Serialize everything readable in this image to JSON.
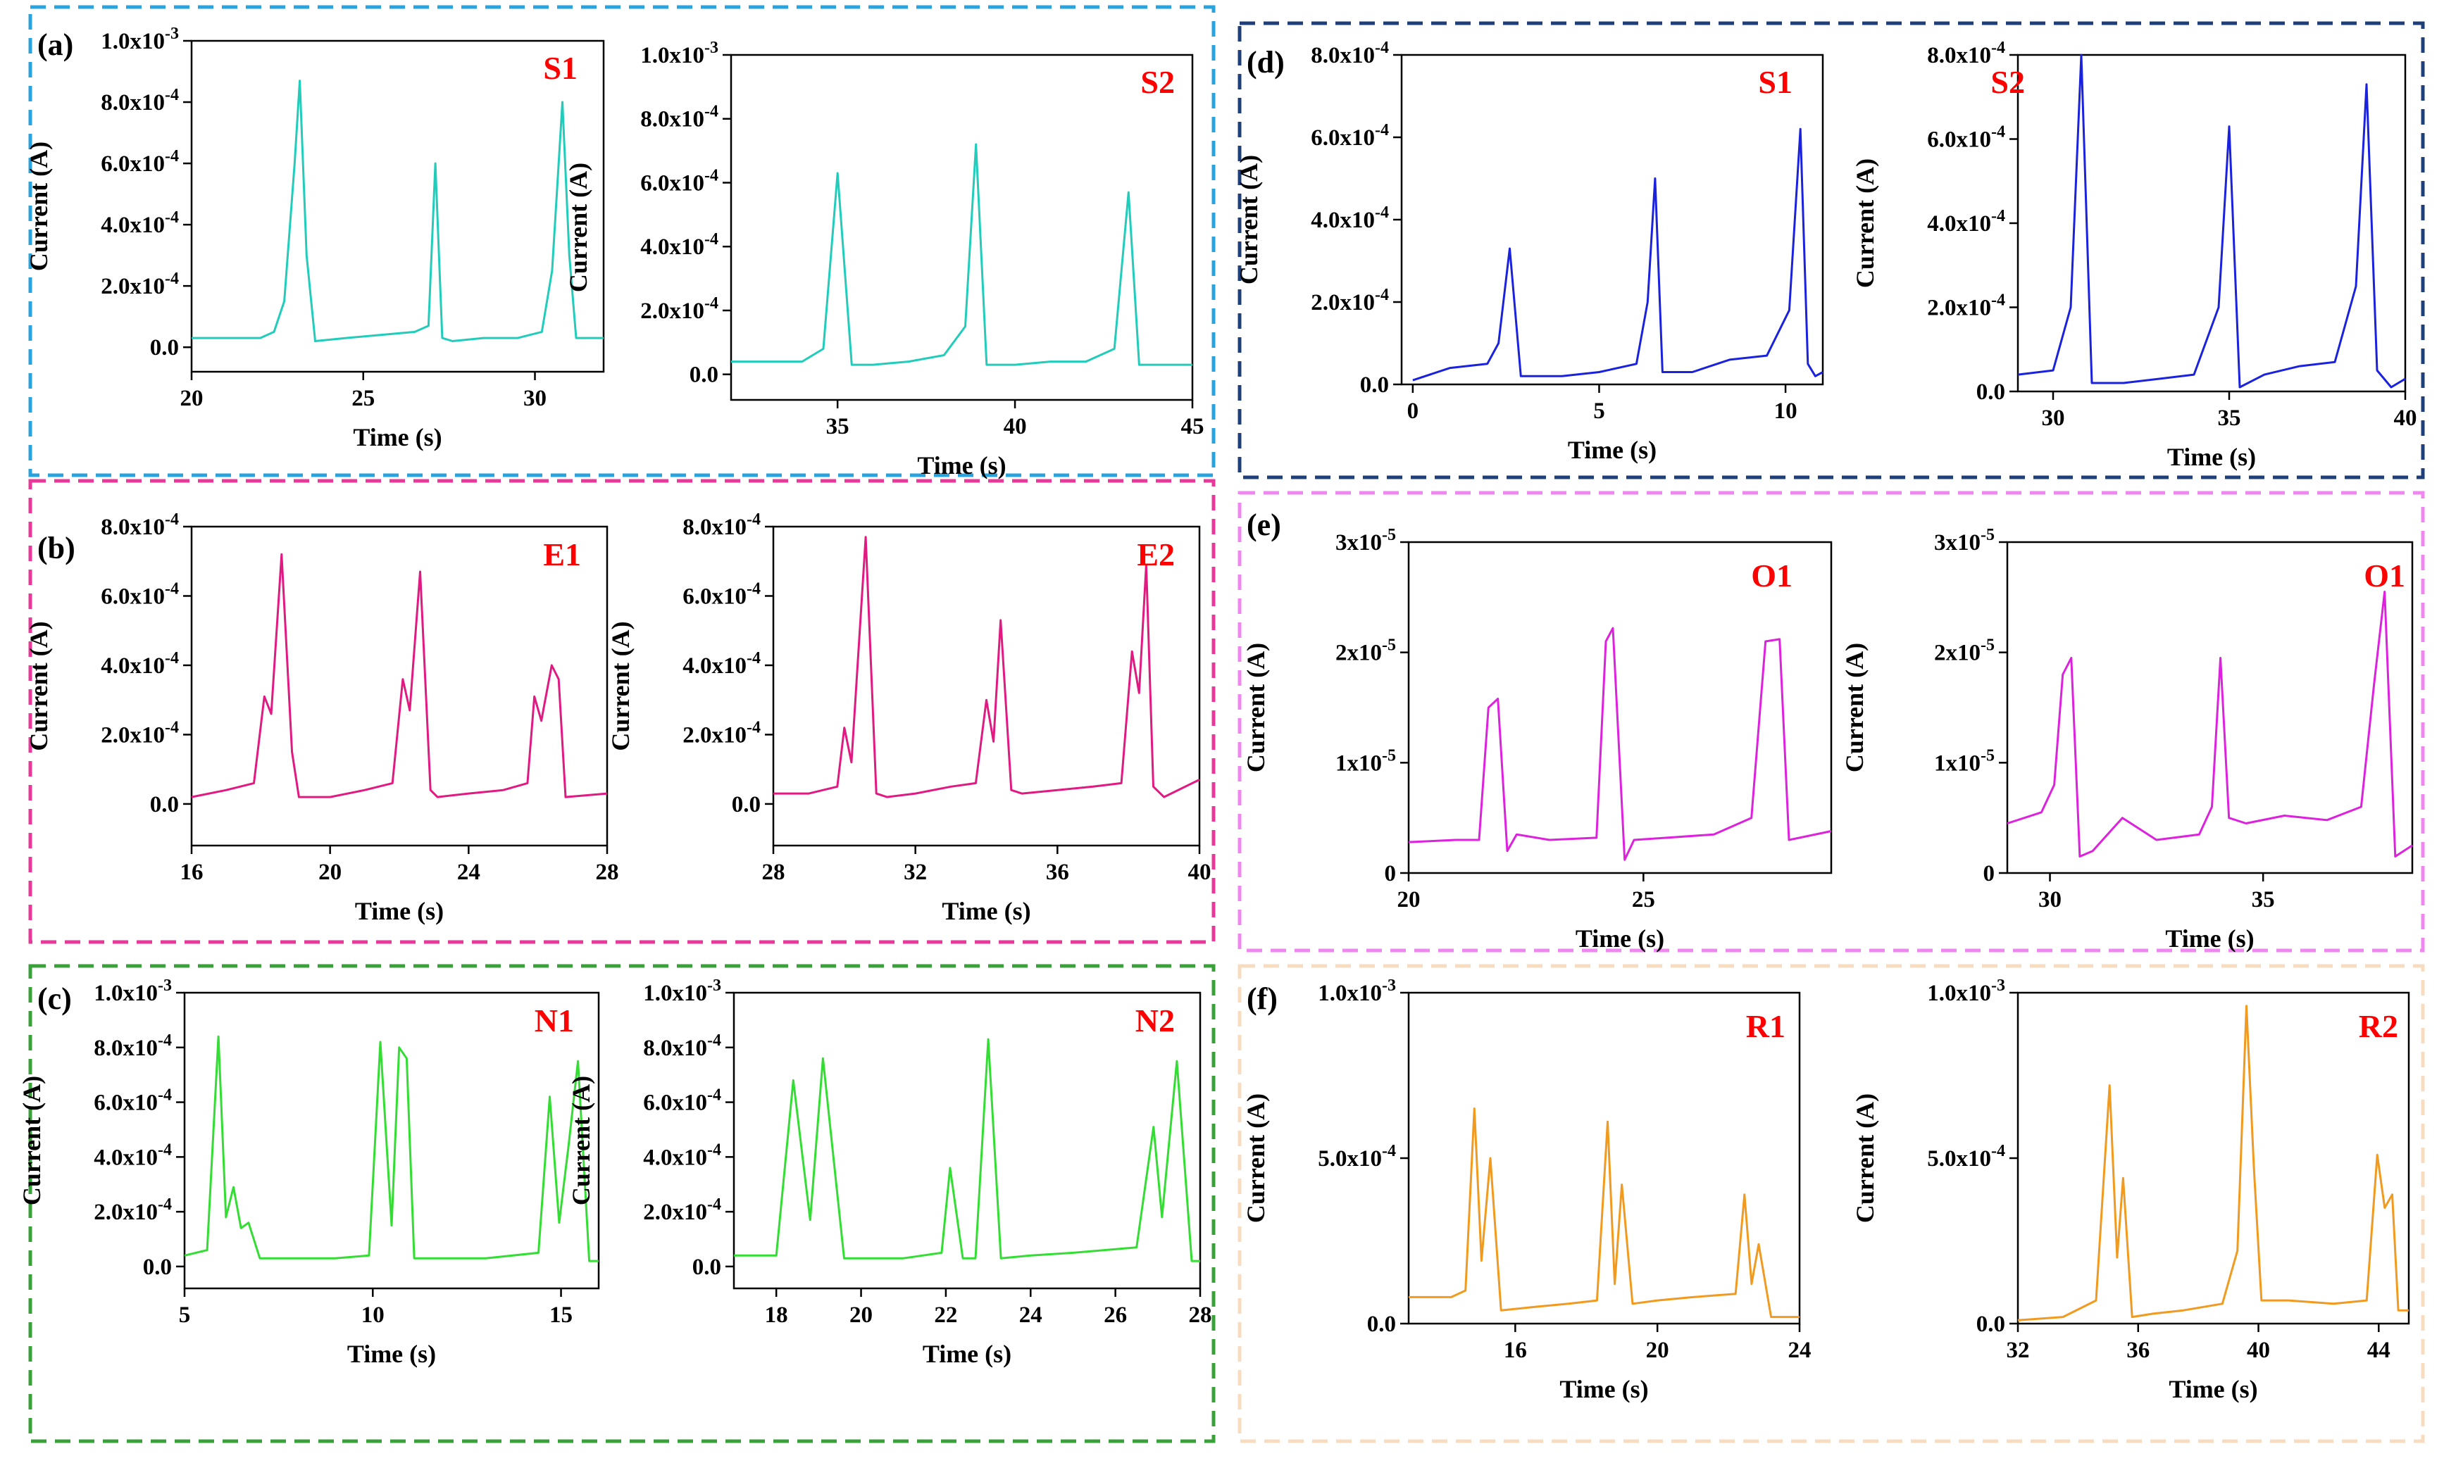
{
  "figure": {
    "frames": [
      {
        "name": "frame-a",
        "color": "#29a3dd"
      },
      {
        "name": "frame-b",
        "color": "#e8389a"
      },
      {
        "name": "frame-c",
        "color": "#3aa13a"
      },
      {
        "name": "frame-d",
        "color": "#1f3f7a"
      },
      {
        "name": "frame-e",
        "color": "#ee88ee"
      },
      {
        "name": "frame-f",
        "color": "#f8dcc0"
      }
    ],
    "panel_labels": [
      "(a)",
      "(b)",
      "(c)",
      "(d)",
      "(e)",
      "(f)"
    ]
  },
  "chart_data": [
    {
      "type": "line",
      "panel": "(a)",
      "label": "S1",
      "color": "#22ccbb",
      "xlabel": "Time (s)",
      "ylabel": "Current (A)",
      "xlim": [
        20,
        32
      ],
      "ylim": [
        -8e-05,
        0.001
      ],
      "xticks": [
        20,
        25,
        30
      ],
      "xticklabels": [
        "20",
        "25",
        "30"
      ],
      "yticks": [
        0,
        0.0002,
        0.0004,
        0.0006,
        0.0008,
        0.001
      ],
      "yticklabels": [
        "0.0",
        "2.0x10-4",
        "4.0x10-4",
        "6.0x10-4",
        "8.0x10-4",
        "1.0x10-3"
      ],
      "x": [
        20,
        21,
        22,
        22.4,
        22.7,
        23.0,
        23.15,
        23.35,
        23.6,
        24.5,
        25.5,
        26.5,
        26.9,
        27.1,
        27.3,
        27.6,
        28.5,
        29.5,
        30.2,
        30.5,
        30.8,
        31.0,
        31.2,
        32
      ],
      "y": [
        3e-05,
        3e-05,
        3e-05,
        5e-05,
        0.00015,
        0.0006,
        0.00087,
        0.0003,
        2e-05,
        3e-05,
        4e-05,
        5e-05,
        7e-05,
        0.0006,
        3e-05,
        2e-05,
        3e-05,
        3e-05,
        5e-05,
        0.00025,
        0.0008,
        0.0003,
        3e-05,
        3e-05
      ]
    },
    {
      "type": "line",
      "panel": "(a)",
      "label": "S2",
      "color": "#22ccbb",
      "xlabel": "Time (s)",
      "ylabel": "Current (A)",
      "xlim": [
        32,
        45
      ],
      "ylim": [
        -8e-05,
        0.001
      ],
      "xticks": [
        35,
        40,
        45
      ],
      "xticklabels": [
        "35",
        "40",
        "45"
      ],
      "yticks": [
        0,
        0.0002,
        0.0004,
        0.0006,
        0.0008,
        0.001
      ],
      "yticklabels": [
        "0.0",
        "2.0x10-4",
        "4.0x10-4",
        "6.0x10-4",
        "8.0x10-4",
        "1.0x10-3"
      ],
      "x": [
        32,
        33,
        34,
        34.6,
        35.0,
        35.4,
        36,
        37,
        38,
        38.6,
        38.9,
        39.2,
        40,
        41,
        42,
        42.8,
        43.2,
        43.5,
        44,
        45
      ],
      "y": [
        4e-05,
        4e-05,
        4e-05,
        8e-05,
        0.00063,
        3e-05,
        3e-05,
        4e-05,
        6e-05,
        0.00015,
        0.00072,
        3e-05,
        3e-05,
        4e-05,
        4e-05,
        8e-05,
        0.00057,
        3e-05,
        3e-05,
        3e-05
      ]
    },
    {
      "type": "line",
      "panel": "(b)",
      "label": "E1",
      "color": "#e01a80",
      "xlabel": "Time (s)",
      "ylabel": "Current (A)",
      "xlim": [
        16,
        28
      ],
      "ylim": [
        -0.00012,
        0.0008
      ],
      "xticks": [
        16,
        20,
        24,
        28
      ],
      "xticklabels": [
        "16",
        "20",
        "24",
        "28"
      ],
      "yticks": [
        0,
        0.0002,
        0.0004,
        0.0006,
        0.0008
      ],
      "yticklabels": [
        "0.0",
        "2.0x10-4",
        "4.0x10-4",
        "6.0x10-4",
        "8.0x10-4"
      ],
      "x": [
        16,
        17,
        17.8,
        18.1,
        18.3,
        18.6,
        18.9,
        19.1,
        20,
        21,
        21.8,
        22.1,
        22.3,
        22.6,
        22.9,
        23.1,
        24,
        25,
        25.7,
        25.9,
        26.1,
        26.4,
        26.6,
        26.8,
        28
      ],
      "y": [
        2e-05,
        4e-05,
        6e-05,
        0.00031,
        0.00026,
        0.00072,
        0.00015,
        2e-05,
        2e-05,
        4e-05,
        6e-05,
        0.00036,
        0.00027,
        0.00067,
        4e-05,
        2e-05,
        3e-05,
        4e-05,
        6e-05,
        0.00031,
        0.00024,
        0.0004,
        0.00036,
        2e-05,
        3e-05
      ]
    },
    {
      "type": "line",
      "panel": "(b)",
      "label": "E2",
      "color": "#e01a80",
      "xlabel": "Time (s)",
      "ylabel": "Current (A)",
      "xlim": [
        28,
        40
      ],
      "ylim": [
        -0.00012,
        0.0008
      ],
      "xticks": [
        28,
        32,
        36,
        40
      ],
      "xticklabels": [
        "28",
        "32",
        "36",
        "40"
      ],
      "yticks": [
        0,
        0.0002,
        0.0004,
        0.0006,
        0.0008
      ],
      "yticklabels": [
        "0.0",
        "2.0x10-4",
        "4.0x10-4",
        "6.0x10-4",
        "8.0x10-4"
      ],
      "x": [
        28,
        29,
        29.8,
        30.0,
        30.2,
        30.6,
        30.9,
        31.2,
        32,
        33,
        33.7,
        34.0,
        34.2,
        34.4,
        34.7,
        35,
        36,
        37,
        37.8,
        38.1,
        38.3,
        38.5,
        38.7,
        39,
        40
      ],
      "y": [
        3e-05,
        3e-05,
        5e-05,
        0.00022,
        0.00012,
        0.00077,
        3e-05,
        2e-05,
        3e-05,
        5e-05,
        6e-05,
        0.0003,
        0.00018,
        0.00053,
        4e-05,
        3e-05,
        4e-05,
        5e-05,
        6e-05,
        0.00044,
        0.00032,
        0.00069,
        5e-05,
        2e-05,
        7e-05
      ]
    },
    {
      "type": "line",
      "panel": "(c)",
      "label": "N1",
      "color": "#33dd33",
      "xlabel": "Time (s)",
      "ylabel": "Current (A)",
      "xlim": [
        5,
        16
      ],
      "ylim": [
        -8e-05,
        0.001
      ],
      "xticks": [
        5,
        10,
        15
      ],
      "xticklabels": [
        "5",
        "10",
        "15"
      ],
      "yticks": [
        0,
        0.0002,
        0.0004,
        0.0006,
        0.0008,
        0.001
      ],
      "yticklabels": [
        "0.0",
        "2.0x10-4",
        "4.0x10-4",
        "6.0x10-4",
        "8.0x10-4",
        "1.0x10-3"
      ],
      "x": [
        5,
        5.6,
        5.9,
        6.1,
        6.3,
        6.5,
        6.7,
        7,
        8,
        9,
        9.9,
        10.2,
        10.5,
        10.7,
        10.9,
        11.1,
        11.3,
        12,
        13,
        14.4,
        14.7,
        14.95,
        15.2,
        15.45,
        15.75,
        16
      ],
      "y": [
        4e-05,
        6e-05,
        0.00084,
        0.00018,
        0.00029,
        0.00014,
        0.00016,
        3e-05,
        3e-05,
        3e-05,
        4e-05,
        0.00082,
        0.00015,
        0.0008,
        0.00076,
        3e-05,
        3e-05,
        3e-05,
        3e-05,
        5e-05,
        0.00062,
        0.00016,
        0.00044,
        0.00075,
        2e-05,
        2e-05
      ]
    },
    {
      "type": "line",
      "panel": "(c)",
      "label": "N2",
      "color": "#33dd33",
      "xlabel": "Time (s)",
      "ylabel": "Current (A)",
      "xlim": [
        17,
        28
      ],
      "ylim": [
        -8e-05,
        0.001
      ],
      "xticks": [
        18,
        20,
        22,
        24,
        26,
        28
      ],
      "xticklabels": [
        "18",
        "20",
        "22",
        "24",
        "26",
        "28"
      ],
      "yticks": [
        0,
        0.0002,
        0.0004,
        0.0006,
        0.0008,
        0.001
      ],
      "yticklabels": [
        "0.0",
        "2.0x10-4",
        "4.0x10-4",
        "6.0x10-4",
        "8.0x10-4",
        "1.0x10-3"
      ],
      "x": [
        17,
        18,
        18.4,
        18.8,
        19.1,
        19.6,
        20,
        21,
        21.9,
        22.1,
        22.4,
        22.7,
        23.0,
        23.3,
        24,
        25,
        26.5,
        26.9,
        27.1,
        27.45,
        27.8,
        28
      ],
      "y": [
        4e-05,
        4e-05,
        0.00068,
        0.00017,
        0.00076,
        3e-05,
        3e-05,
        3e-05,
        5e-05,
        0.00036,
        3e-05,
        3e-05,
        0.00083,
        3e-05,
        4e-05,
        5e-05,
        7e-05,
        0.00051,
        0.00018,
        0.00075,
        2e-05,
        2e-05
      ]
    },
    {
      "type": "line",
      "panel": "(d)",
      "label": "S1",
      "color": "#1a22dd",
      "xlabel": "Time (s)",
      "ylabel": "Current (A)",
      "xlim": [
        -0.3,
        11
      ],
      "ylim": [
        0,
        0.0008
      ],
      "xticks": [
        0,
        5,
        10
      ],
      "xticklabels": [
        "0",
        "5",
        "10"
      ],
      "yticks": [
        0,
        0.0002,
        0.0004,
        0.0006,
        0.0008
      ],
      "yticklabels": [
        "0.0",
        "2.0x10-4",
        "4.0x10-4",
        "6.0x10-4",
        "8.0x10-4"
      ],
      "x": [
        0,
        1,
        2,
        2.3,
        2.6,
        2.9,
        4,
        5,
        6,
        6.3,
        6.5,
        6.7,
        7.5,
        8.5,
        9.5,
        10.1,
        10.4,
        10.6,
        10.8,
        11
      ],
      "y": [
        1e-05,
        4e-05,
        5e-05,
        0.0001,
        0.00033,
        2e-05,
        2e-05,
        3e-05,
        5e-05,
        0.0002,
        0.0005,
        3e-05,
        3e-05,
        6e-05,
        7e-05,
        0.00018,
        0.00062,
        5e-05,
        2e-05,
        3e-05
      ]
    },
    {
      "type": "line",
      "panel": "(d)",
      "label": "S2",
      "color": "#1a22dd",
      "xlabel": "Time (s)",
      "ylabel": "Current (A)",
      "xlim": [
        29,
        40
      ],
      "ylim": [
        0,
        0.0008
      ],
      "xticks": [
        30,
        35,
        40
      ],
      "xticklabels": [
        "30",
        "35",
        "40"
      ],
      "yticks": [
        0,
        0.0002,
        0.0004,
        0.0006,
        0.0008
      ],
      "yticklabels": [
        "0.0",
        "2.0x10-4",
        "4.0x10-4",
        "6.0x10-4",
        "8.0x10-4"
      ],
      "x": [
        29,
        30,
        30.5,
        30.8,
        31.1,
        32,
        33,
        34,
        34.7,
        35.0,
        35.3,
        36,
        37,
        38,
        38.6,
        38.9,
        39.2,
        39.6,
        40
      ],
      "y": [
        4e-05,
        5e-05,
        0.0002,
        0.0008,
        2e-05,
        2e-05,
        3e-05,
        4e-05,
        0.0002,
        0.00063,
        1e-05,
        4e-05,
        6e-05,
        7e-05,
        0.00025,
        0.00073,
        5e-05,
        1e-05,
        3e-05
      ]
    },
    {
      "type": "line",
      "panel": "(e)",
      "label": "O1",
      "color": "#dd22dd",
      "xlabel": "Time (s)",
      "ylabel": "Current (A)",
      "xlim": [
        20,
        29
      ],
      "ylim": [
        0,
        3e-05
      ],
      "xticks": [
        20,
        25
      ],
      "xticklabels": [
        "20",
        "25"
      ],
      "yticks": [
        0,
        1e-05,
        2e-05,
        3e-05
      ],
      "yticklabels": [
        "0",
        "1x10-5",
        "2x10-5",
        "3x10-5"
      ],
      "x": [
        20,
        21,
        21.5,
        21.7,
        21.9,
        22.1,
        22.3,
        23,
        24,
        24.2,
        24.35,
        24.6,
        24.8,
        25.5,
        26.5,
        27.3,
        27.6,
        27.9,
        28.1,
        29
      ],
      "y": [
        2.8e-06,
        3e-06,
        3e-06,
        1.5e-05,
        1.58e-05,
        2e-06,
        3.5e-06,
        3e-06,
        3.2e-06,
        2.1e-05,
        2.22e-05,
        1.2e-06,
        3e-06,
        3.2e-06,
        3.5e-06,
        5e-06,
        2.1e-05,
        2.12e-05,
        3e-06,
        3.8e-06
      ]
    },
    {
      "type": "line",
      "panel": "(e)",
      "label": "O1",
      "color": "#dd22dd",
      "xlabel": "Time (s)",
      "ylabel": "Current (A)",
      "xlim": [
        29,
        38.5
      ],
      "ylim": [
        0,
        3e-05
      ],
      "xticks": [
        30,
        35
      ],
      "xticklabels": [
        "30",
        "35"
      ],
      "yticks": [
        0,
        1e-05,
        2e-05,
        3e-05
      ],
      "yticklabels": [
        "0",
        "1x10-5",
        "2x10-5",
        "3x10-5"
      ],
      "x": [
        29,
        29.8,
        30.1,
        30.3,
        30.5,
        30.7,
        31,
        31.7,
        32.5,
        33.5,
        33.8,
        34.0,
        34.2,
        34.6,
        35.5,
        36.5,
        37.3,
        37.6,
        37.85,
        38.1,
        38.5
      ],
      "y": [
        4.5e-06,
        5.5e-06,
        8e-06,
        1.8e-05,
        1.95e-05,
        1.5e-06,
        2e-06,
        5e-06,
        3e-06,
        3.5e-06,
        6e-06,
        1.95e-05,
        5e-06,
        4.5e-06,
        5.2e-06,
        4.8e-06,
        6e-06,
        1.7e-05,
        2.55e-05,
        1.5e-06,
        2.5e-06
      ]
    },
    {
      "type": "line",
      "panel": "(f)",
      "label": "R1",
      "color": "#f09a20",
      "xlabel": "Time (s)",
      "ylabel": "Current (A)",
      "xlim": [
        13,
        24
      ],
      "ylim": [
        0,
        0.001
      ],
      "xticks": [
        16,
        20,
        24
      ],
      "xticklabels": [
        "16",
        "20",
        "24"
      ],
      "yticks": [
        0,
        0.0005,
        0.001
      ],
      "yticklabels": [
        "0.0",
        "5.0x10-4",
        "1.0x10-3"
      ],
      "x": [
        13,
        14.2,
        14.6,
        14.85,
        15.05,
        15.3,
        15.6,
        16.5,
        17.5,
        18.3,
        18.6,
        18.8,
        19.0,
        19.3,
        20,
        21,
        22.2,
        22.45,
        22.65,
        22.85,
        23.2,
        24
      ],
      "y": [
        8e-05,
        8e-05,
        0.0001,
        0.00065,
        0.00019,
        0.0005,
        4e-05,
        5e-05,
        6e-05,
        7e-05,
        0.00061,
        0.00012,
        0.00042,
        6e-05,
        7e-05,
        8e-05,
        9e-05,
        0.00039,
        0.00012,
        0.00024,
        2e-05,
        2e-05
      ]
    },
    {
      "type": "line",
      "panel": "(f)",
      "label": "R2",
      "color": "#f09a20",
      "xlabel": "Time (s)",
      "ylabel": "Current (A)",
      "xlim": [
        32,
        45
      ],
      "ylim": [
        0,
        0.001
      ],
      "xticks": [
        32,
        36,
        40,
        44
      ],
      "xticklabels": [
        "32",
        "36",
        "40",
        "44"
      ],
      "yticks": [
        0,
        0.0005,
        0.001
      ],
      "yticklabels": [
        "0.0",
        "5.0x10-4",
        "1.0x10-3"
      ],
      "x": [
        32,
        33.5,
        34.6,
        35.05,
        35.3,
        35.5,
        35.8,
        36.5,
        37.5,
        38.8,
        39.3,
        39.6,
        39.85,
        40.1,
        41,
        42.5,
        43.6,
        43.95,
        44.2,
        44.45,
        44.65,
        45
      ],
      "y": [
        1e-05,
        2e-05,
        7e-05,
        0.00072,
        0.0002,
        0.00044,
        2e-05,
        3e-05,
        4e-05,
        6e-05,
        0.00022,
        0.00096,
        0.00047,
        7e-05,
        7e-05,
        6e-05,
        7e-05,
        0.00051,
        0.00035,
        0.00039,
        4e-05,
        4e-05
      ]
    }
  ]
}
